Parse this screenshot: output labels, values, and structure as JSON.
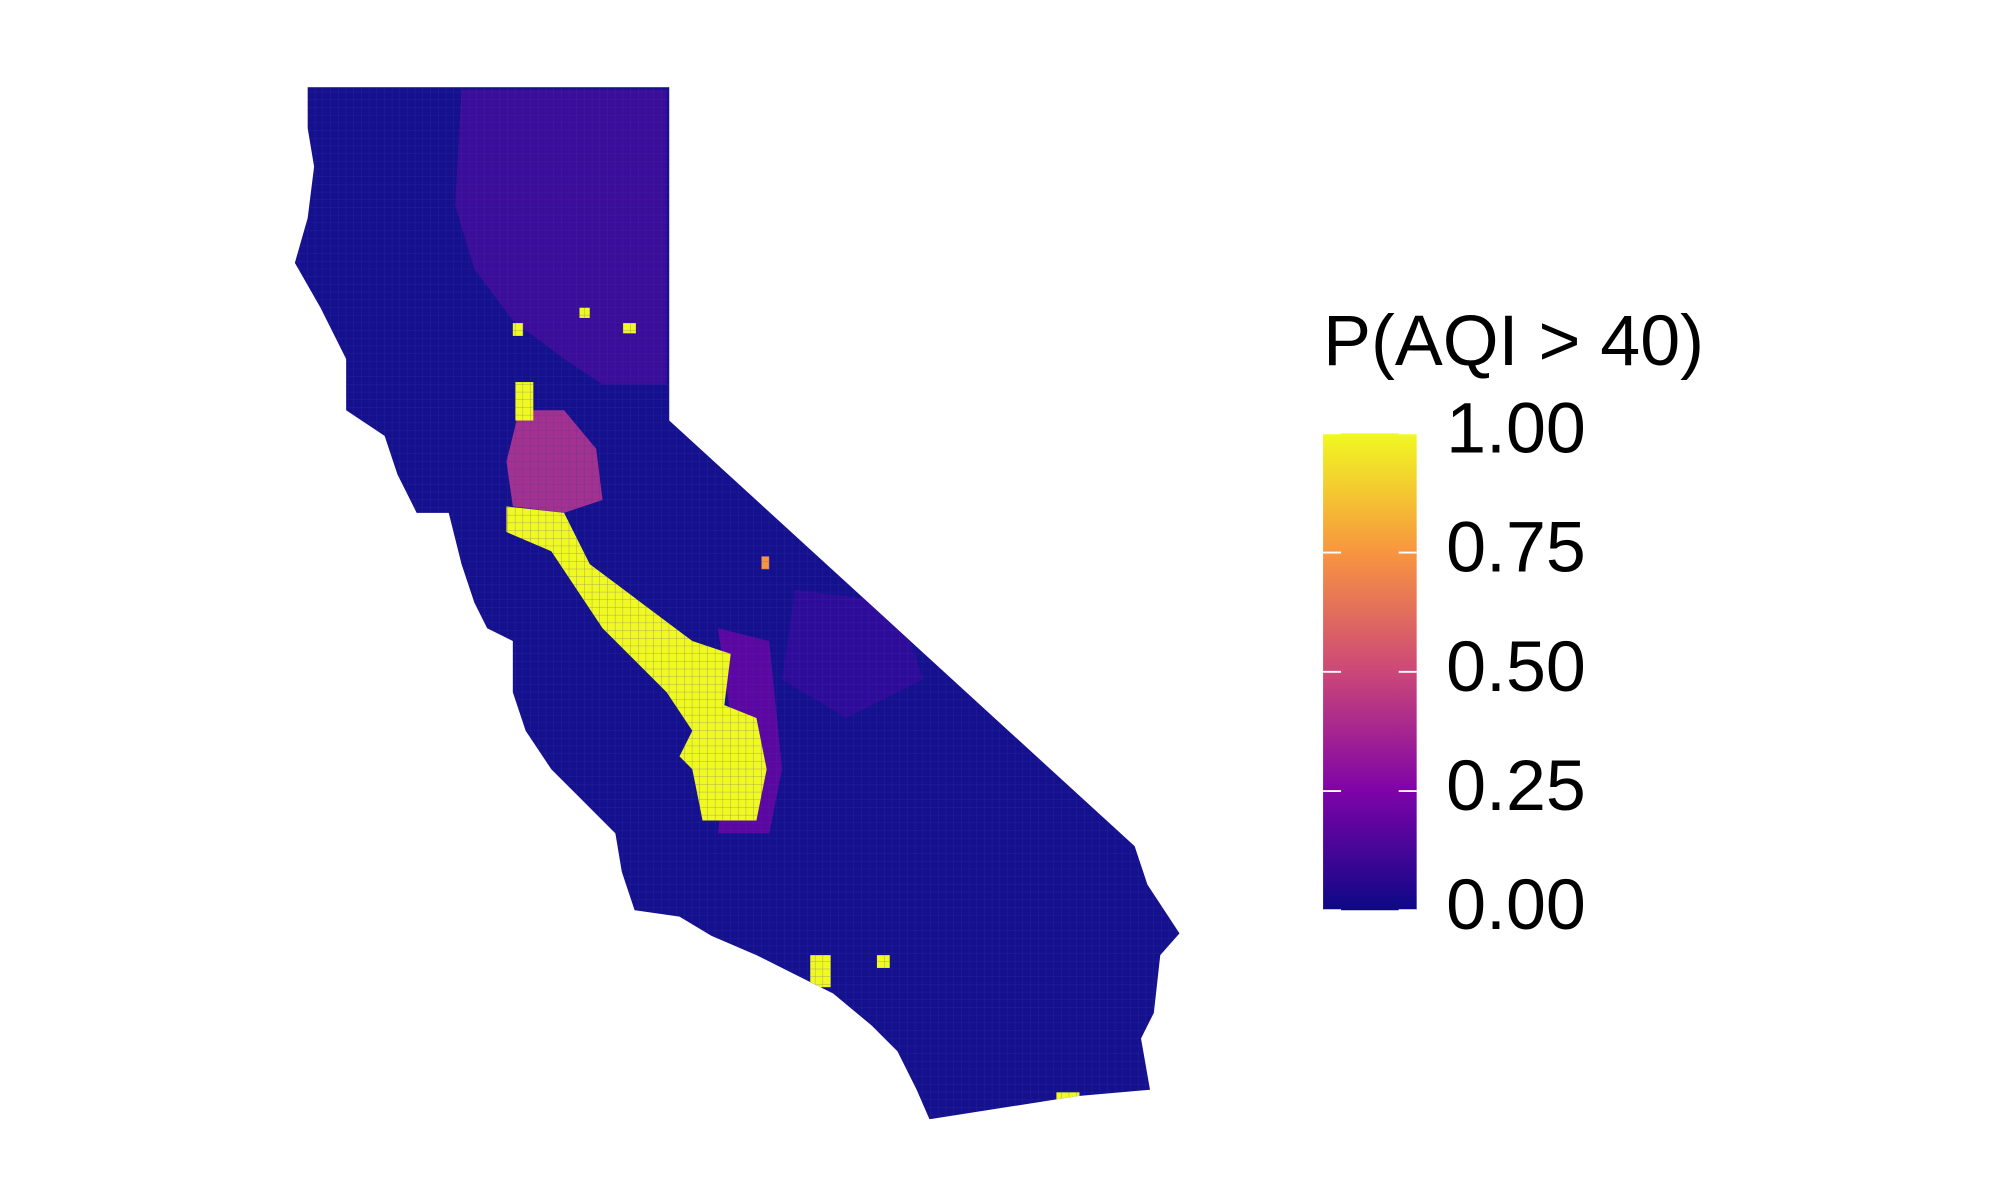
{
  "map": {
    "legend": {
      "title": "P(AQI > 40)",
      "lim": [
        0,
        1
      ],
      "ticks": [
        {
          "value": 0,
          "label": "0.00"
        },
        {
          "value": 0.25,
          "label": "0.25"
        },
        {
          "value": 0.5,
          "label": "0.50"
        },
        {
          "value": 0.75,
          "label": "0.75"
        },
        {
          "value": 1,
          "label": "1.00"
        }
      ]
    }
  }
}
